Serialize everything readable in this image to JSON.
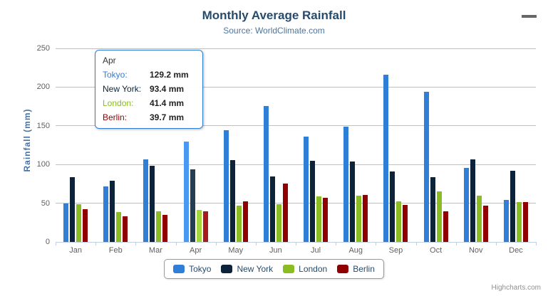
{
  "header": {
    "title": "Monthly Average Rainfall",
    "subtitle": "Source: WorldClimate.com"
  },
  "credit": "Highcharts.com",
  "chart_data": {
    "type": "bar",
    "title": "Monthly Average Rainfall",
    "subtitle": "Source: WorldClimate.com",
    "categories": [
      "Jan",
      "Feb",
      "Mar",
      "Apr",
      "May",
      "Jun",
      "Jul",
      "Aug",
      "Sep",
      "Oct",
      "Nov",
      "Dec"
    ],
    "series": [
      {
        "name": "Tokyo",
        "color": "#2f7ed8",
        "values": [
          49.9,
          71.5,
          106.4,
          129.2,
          144.0,
          176.0,
          135.6,
          148.5,
          216.4,
          194.1,
          95.6,
          54.4
        ]
      },
      {
        "name": "New York",
        "color": "#0d233a",
        "values": [
          83.6,
          78.8,
          98.5,
          93.4,
          106.0,
          84.5,
          105.0,
          104.3,
          91.2,
          83.5,
          106.6,
          92.3
        ]
      },
      {
        "name": "London",
        "color": "#8bbc21",
        "values": [
          48.9,
          38.8,
          39.3,
          41.4,
          47.0,
          48.3,
          59.0,
          59.6,
          52.4,
          65.2,
          59.3,
          51.2
        ]
      },
      {
        "name": "Berlin",
        "color": "#910000",
        "values": [
          42.4,
          33.2,
          34.5,
          39.7,
          52.6,
          75.5,
          57.4,
          60.4,
          47.6,
          39.1,
          46.8,
          51.1
        ]
      }
    ],
    "xlabel": "",
    "ylabel": "Rainfall (mm)",
    "ylim": [
      0,
      250
    ],
    "ytick_step": 50,
    "grid": true,
    "legend_position": "bottom",
    "hovered_category_index": 3
  },
  "tooltip": {
    "title": "Apr",
    "rows": [
      {
        "label": "Tokyo:",
        "value": "129.2 mm",
        "color": "#2f7ed8"
      },
      {
        "label": "New York:",
        "value": "93.4 mm",
        "color": "#0d233a"
      },
      {
        "label": "London:",
        "value": "41.4 mm",
        "color": "#8bbc21"
      },
      {
        "label": "Berlin:",
        "value": "39.7 mm",
        "color": "#910000"
      }
    ]
  },
  "legend": {
    "items": [
      {
        "label": "Tokyo",
        "color": "#2f7ed8"
      },
      {
        "label": "New York",
        "color": "#0d233a"
      },
      {
        "label": "London",
        "color": "#8bbc21"
      },
      {
        "label": "Berlin",
        "color": "#910000"
      }
    ]
  },
  "colors": {
    "title": "#274b6d",
    "subtitle": "#4d759e",
    "yaxis_title": "#4572a7",
    "axis_labels": "#606060",
    "gridline": "#c0c0c0",
    "axis_line": "#c0d0e0",
    "tooltip_border": "#2f7ed8",
    "credit": "#909090"
  }
}
